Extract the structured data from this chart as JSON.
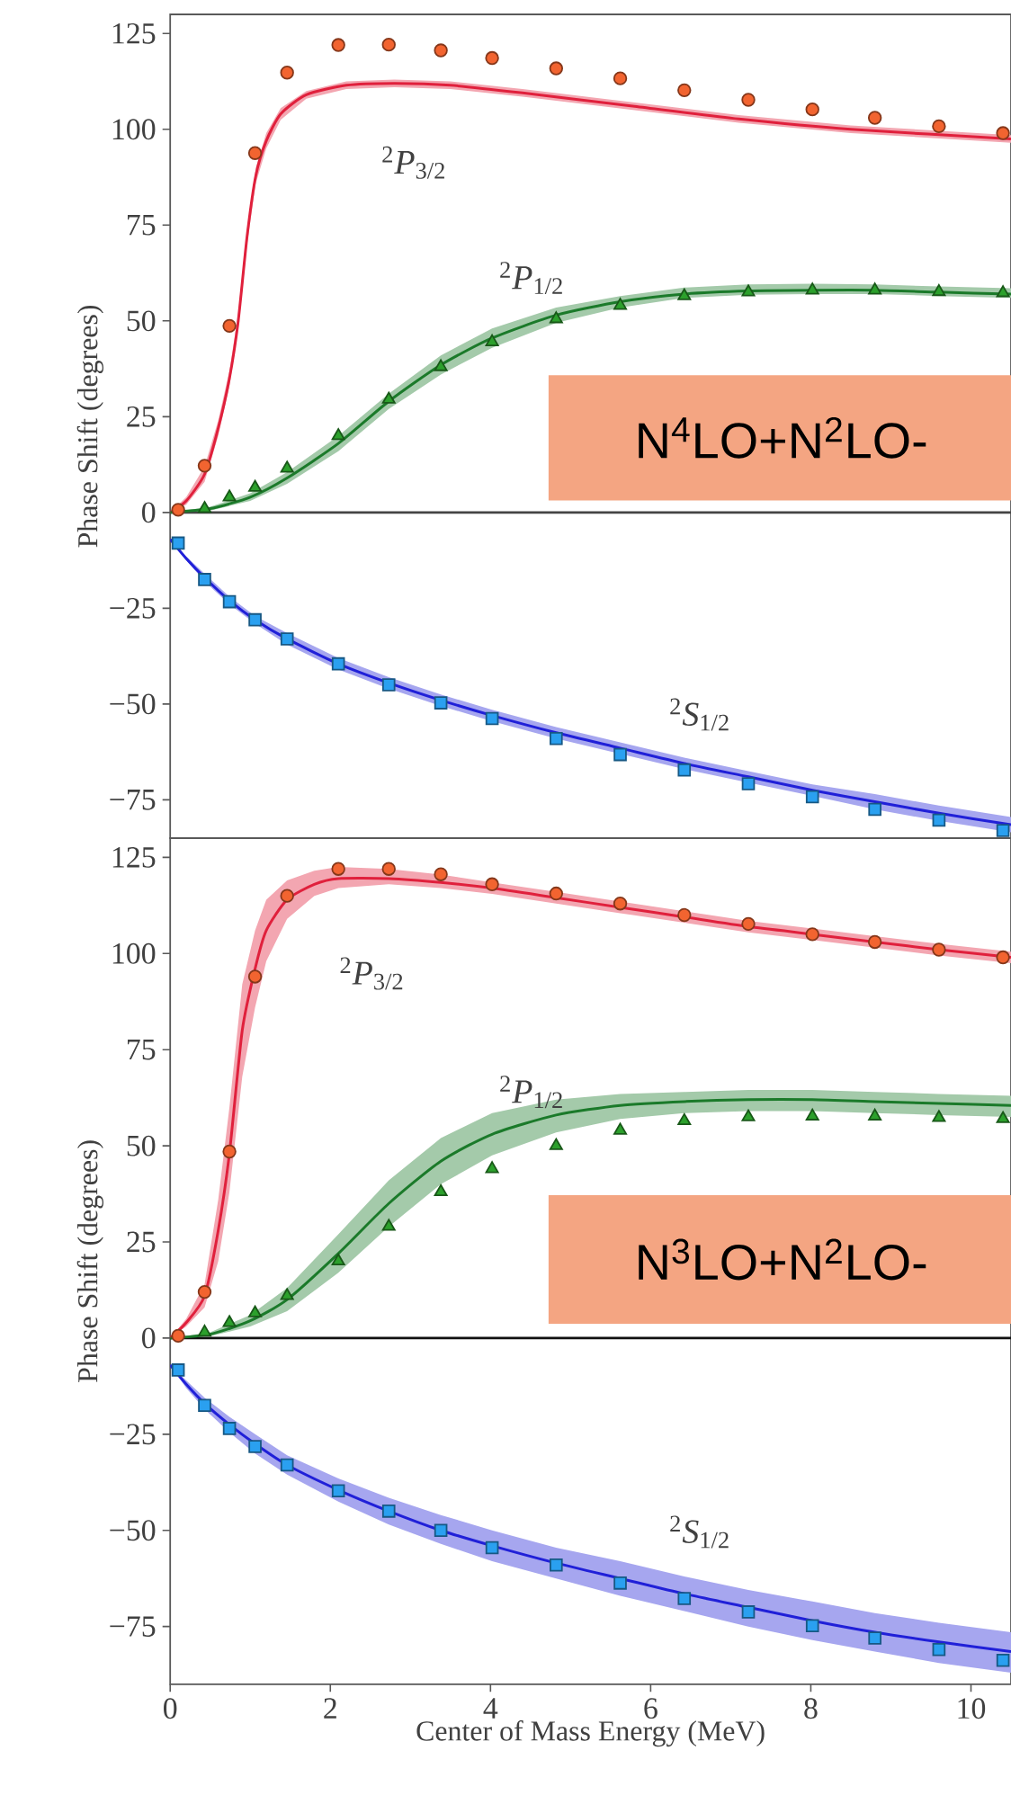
{
  "chart_data": [
    {
      "type": "line",
      "ylabel": "Phase Shift (degrees)",
      "xlim": [
        0,
        10.5
      ],
      "ylim": [
        -85,
        130
      ],
      "tick_labels": "y",
      "yticks": [
        {
          "value": -75,
          "label": "−75"
        },
        {
          "value": -50,
          "label": "−50"
        },
        {
          "value": -25,
          "label": "−25"
        },
        0,
        25,
        50,
        75,
        100,
        125
      ],
      "ref_lines": [
        {
          "axis": "y",
          "value": 0,
          "color": "#444444"
        }
      ],
      "annotations": [
        "$^{2}$*P*$_{3/2}$",
        "$^{2}$*P*$_{1/2}$",
        "$^{2}$*S*$_{1/2}$",
        "N$^{4}$LO+N$^{2}$LO-"
      ],
      "series": [
        {
          "type": "line",
          "color": "#e0203c",
          "x": [
            0,
            0.2,
            0.43,
            0.6,
            0.74,
            0.85,
            0.96,
            1.07,
            1.2,
            1.38,
            1.7,
            2.2,
            2.8,
            3.5,
            4.4,
            5.8,
            7.1,
            8.5,
            10.5
          ],
          "values": [
            0,
            3,
            10,
            22,
            35,
            50,
            72,
            88,
            97,
            104,
            109,
            111.5,
            112,
            111.5,
            109.5,
            106,
            102.7,
            100,
            97.5
          ],
          "lower": [
            0,
            2,
            8,
            20,
            33,
            48,
            70,
            86,
            95,
            102.5,
            108,
            110.5,
            111,
            110.5,
            108.5,
            105,
            101.7,
            99,
            96.5
          ],
          "upper": [
            0,
            4,
            12,
            24,
            37,
            52,
            74,
            90,
            99,
            105.5,
            110,
            112.5,
            113,
            112.5,
            110.5,
            107,
            103.7,
            101,
            98.5
          ]
        },
        {
          "type": "line",
          "color": "#1b7a2a",
          "x": [
            0,
            0.5,
            1,
            1.46,
            2.1,
            2.73,
            3.38,
            4.02,
            4.82,
            5.62,
            6.42,
            7.22,
            8.02,
            8.8,
            9.6,
            10.5
          ],
          "values": [
            0,
            1,
            4,
            9,
            18,
            29,
            38.5,
            45.5,
            51.5,
            55,
            57,
            57.8,
            58,
            58,
            57.5,
            57
          ],
          "lower": [
            0,
            0.5,
            3,
            7.5,
            16,
            27,
            36,
            43,
            49.5,
            53.5,
            56,
            56.8,
            57,
            57,
            56.5,
            56
          ],
          "upper": [
            0,
            1.5,
            5,
            10.5,
            20,
            31,
            41,
            48,
            53.5,
            56.5,
            58.7,
            59.5,
            59.7,
            59.5,
            59,
            58.5
          ]
        },
        {
          "type": "line",
          "color": "#2020d8",
          "x": [
            0,
            0.2,
            0.43,
            0.74,
            1.06,
            1.46,
            2.1,
            2.73,
            3.38,
            4.02,
            4.82,
            5.62,
            6.42,
            7.22,
            8.02,
            8.8,
            9.6,
            10.5
          ],
          "values": [
            -7,
            -12,
            -17,
            -23,
            -28,
            -33,
            -39.5,
            -44.5,
            -49,
            -53,
            -57.5,
            -61.5,
            -65.5,
            -69,
            -72.5,
            -75.5,
            -78.5,
            -81.5
          ],
          "lower": [
            -7,
            -12.5,
            -18,
            -24,
            -29,
            -34.5,
            -41,
            -46,
            -50.5,
            -54.5,
            -59,
            -63,
            -67,
            -70.5,
            -74,
            -77.5,
            -80.5,
            -83.5
          ],
          "upper": [
            -7,
            -11.5,
            -16,
            -22,
            -27,
            -31.5,
            -38,
            -43,
            -47.5,
            -51.5,
            -56,
            -60,
            -64,
            -67.5,
            -71,
            -73.5,
            -76.5,
            -79.5
          ]
        },
        {
          "type": "scatter",
          "marker": "circle",
          "color": "#f26430",
          "x": [
            0.1,
            0.43,
            0.74,
            1.06,
            1.46,
            2.1,
            2.73,
            3.38,
            4.02,
            4.82,
            5.62,
            6.42,
            7.22,
            8.02,
            8.8,
            9.6,
            10.4
          ],
          "values": [
            0.7,
            12.2,
            48.7,
            93.8,
            114.8,
            122,
            122.1,
            120.6,
            118.6,
            115.9,
            113.3,
            110.2,
            107.7,
            105.2,
            103,
            100.8,
            99
          ]
        },
        {
          "type": "scatter",
          "marker": "triangle",
          "color": "#2ca02c",
          "x": [
            0.43,
            0.74,
            1.06,
            1.46,
            2.1,
            2.73,
            3.38,
            4.02,
            4.82,
            5.62,
            6.42,
            7.22,
            8.02,
            8.8,
            9.6,
            10.4
          ],
          "values": [
            1,
            4,
            6.5,
            11.5,
            20,
            29.5,
            38,
            44.5,
            50.5,
            54,
            56.5,
            57.5,
            58,
            58,
            57.6,
            57.3
          ]
        },
        {
          "type": "scatter",
          "marker": "square",
          "color": "#2aa0f0",
          "x": [
            0.1,
            0.43,
            0.74,
            1.06,
            1.46,
            2.1,
            2.73,
            3.38,
            4.02,
            4.82,
            5.62,
            6.42,
            7.22,
            8.02,
            8.8,
            9.6,
            10.4
          ],
          "values": [
            -8,
            -17.5,
            -23.3,
            -28,
            -33,
            -39.5,
            -45,
            -49.7,
            -53.8,
            -59,
            -63.2,
            -67.2,
            -70.8,
            -74.2,
            -77.5,
            -80.3,
            -83
          ]
        }
      ]
    },
    {
      "type": "line",
      "ylabel": "Phase Shift (degrees)",
      "xlabel": "Center of Mass Energy (MeV)",
      "xlim": [
        0,
        10.5
      ],
      "ylim": [
        -90,
        130
      ],
      "xticks": [
        0,
        2,
        4,
        6,
        8,
        10
      ],
      "yticks": [
        {
          "value": -75,
          "label": "−75"
        },
        {
          "value": -50,
          "label": "−50"
        },
        {
          "value": -25,
          "label": "−25"
        },
        0,
        25,
        50,
        75,
        100,
        125
      ],
      "ref_lines": [
        {
          "axis": "y",
          "value": 0,
          "color": "#111111"
        }
      ],
      "annotations": [
        "$^{2}$*P*$_{3/2}$",
        "$^{2}$*P*$_{1/2}$",
        "$^{2}$*S*$_{1/2}$",
        "N$^{3}$LO+N$^{2}$LO-"
      ],
      "series": [
        {
          "type": "line",
          "color": "#e0203c",
          "x": [
            0,
            0.2,
            0.43,
            0.6,
            0.74,
            0.9,
            1.06,
            1.2,
            1.46,
            1.8,
            2.1,
            2.73,
            3.38,
            4.02,
            4.82,
            5.62,
            6.42,
            7.22,
            8.02,
            8.8,
            9.6,
            10.5
          ],
          "values": [
            0,
            4,
            11,
            28,
            48,
            80,
            96,
            106,
            114,
            118,
            119.5,
            119.5,
            118.5,
            117,
            114.5,
            112,
            109.5,
            107,
            105,
            103,
            101,
            99
          ],
          "lower": [
            0,
            3,
            8,
            20,
            38,
            68,
            86,
            98,
            109,
            115,
            117,
            118,
            117,
            115.5,
            113,
            110.5,
            108,
            105.5,
            103.5,
            101.5,
            99.5,
            97.5
          ],
          "upper": [
            0,
            5,
            14,
            36,
            60,
            92,
            106,
            114,
            119,
            121.5,
            122.5,
            122,
            120.5,
            118.5,
            116,
            113.5,
            111,
            108.5,
            106.5,
            104.5,
            102.5,
            100.5
          ]
        },
        {
          "type": "line",
          "color": "#1b7a2a",
          "x": [
            0,
            0.5,
            1,
            1.46,
            2.1,
            2.73,
            3.38,
            4.02,
            4.82,
            5.62,
            6.42,
            7.22,
            8.02,
            8.8,
            9.6,
            10.5
          ],
          "values": [
            0,
            1,
            4.5,
            10,
            22,
            35,
            46,
            53,
            58,
            60.5,
            61.5,
            62,
            62,
            61.5,
            61,
            60.5
          ],
          "lower": [
            0,
            0.5,
            3,
            7,
            17,
            29,
            40,
            47.5,
            53.5,
            57,
            58.5,
            59,
            59,
            58.5,
            58,
            57.5
          ],
          "upper": [
            0,
            1.5,
            6,
            13,
            27,
            41,
            52,
            58.5,
            62,
            63.5,
            64,
            64.5,
            64.5,
            64,
            63.5,
            63
          ]
        },
        {
          "type": "line",
          "color": "#2020d8",
          "x": [
            0,
            0.2,
            0.43,
            0.74,
            1.06,
            1.46,
            2.1,
            2.73,
            3.38,
            4.02,
            4.82,
            5.62,
            6.42,
            7.22,
            8.02,
            8.8,
            9.6,
            10.5
          ],
          "values": [
            -7,
            -12,
            -17,
            -22.5,
            -27.5,
            -33,
            -39.5,
            -45,
            -50,
            -54,
            -58.5,
            -62.5,
            -66.5,
            -70,
            -73.5,
            -76.5,
            -79,
            -81.5
          ],
          "lower": [
            -7,
            -13,
            -18.5,
            -24.5,
            -30,
            -35.5,
            -42.5,
            -48.5,
            -53.5,
            -58,
            -62.5,
            -67,
            -71,
            -75,
            -78.5,
            -81.5,
            -84.5,
            -87
          ],
          "upper": [
            -7,
            -11,
            -15.5,
            -20.5,
            -25,
            -30.5,
            -36.5,
            -41.5,
            -46,
            -50,
            -54.5,
            -58,
            -62,
            -65.5,
            -68.5,
            -71.5,
            -74,
            -76.5
          ]
        },
        {
          "type": "scatter",
          "marker": "circle",
          "color": "#f26430",
          "x": [
            0.1,
            0.43,
            0.74,
            1.06,
            1.46,
            2.1,
            2.73,
            3.38,
            4.02,
            4.82,
            5.62,
            6.42,
            7.22,
            8.02,
            8.8,
            9.6,
            10.4
          ],
          "values": [
            0.6,
            12,
            48.5,
            94,
            115,
            122,
            122,
            120.6,
            118,
            115.6,
            113,
            110,
            107.7,
            105,
            103,
            101,
            99
          ]
        },
        {
          "type": "scatter",
          "marker": "triangle",
          "color": "#2ca02c",
          "x": [
            0.43,
            0.74,
            1.06,
            1.46,
            2.1,
            2.73,
            3.38,
            4.02,
            4.82,
            5.62,
            6.42,
            7.22,
            8.02,
            8.8,
            9.6,
            10.4
          ],
          "values": [
            1.5,
            4,
            6.5,
            11,
            20,
            29,
            38,
            44,
            50,
            54,
            56.5,
            57.5,
            57.7,
            57.7,
            57.3,
            57
          ]
        },
        {
          "type": "scatter",
          "marker": "square",
          "color": "#2aa0f0",
          "x": [
            0.1,
            0.43,
            0.74,
            1.06,
            1.46,
            2.1,
            2.73,
            3.38,
            4.02,
            4.82,
            5.62,
            6.42,
            7.22,
            8.02,
            8.8,
            9.6,
            10.4
          ],
          "values": [
            -8.3,
            -17.5,
            -23.5,
            -28.2,
            -33,
            -39.7,
            -45,
            -50,
            -54.5,
            -59,
            -63.7,
            -67.7,
            -71.2,
            -74.8,
            -78,
            -81,
            -83.8
          ]
        }
      ]
    }
  ]
}
